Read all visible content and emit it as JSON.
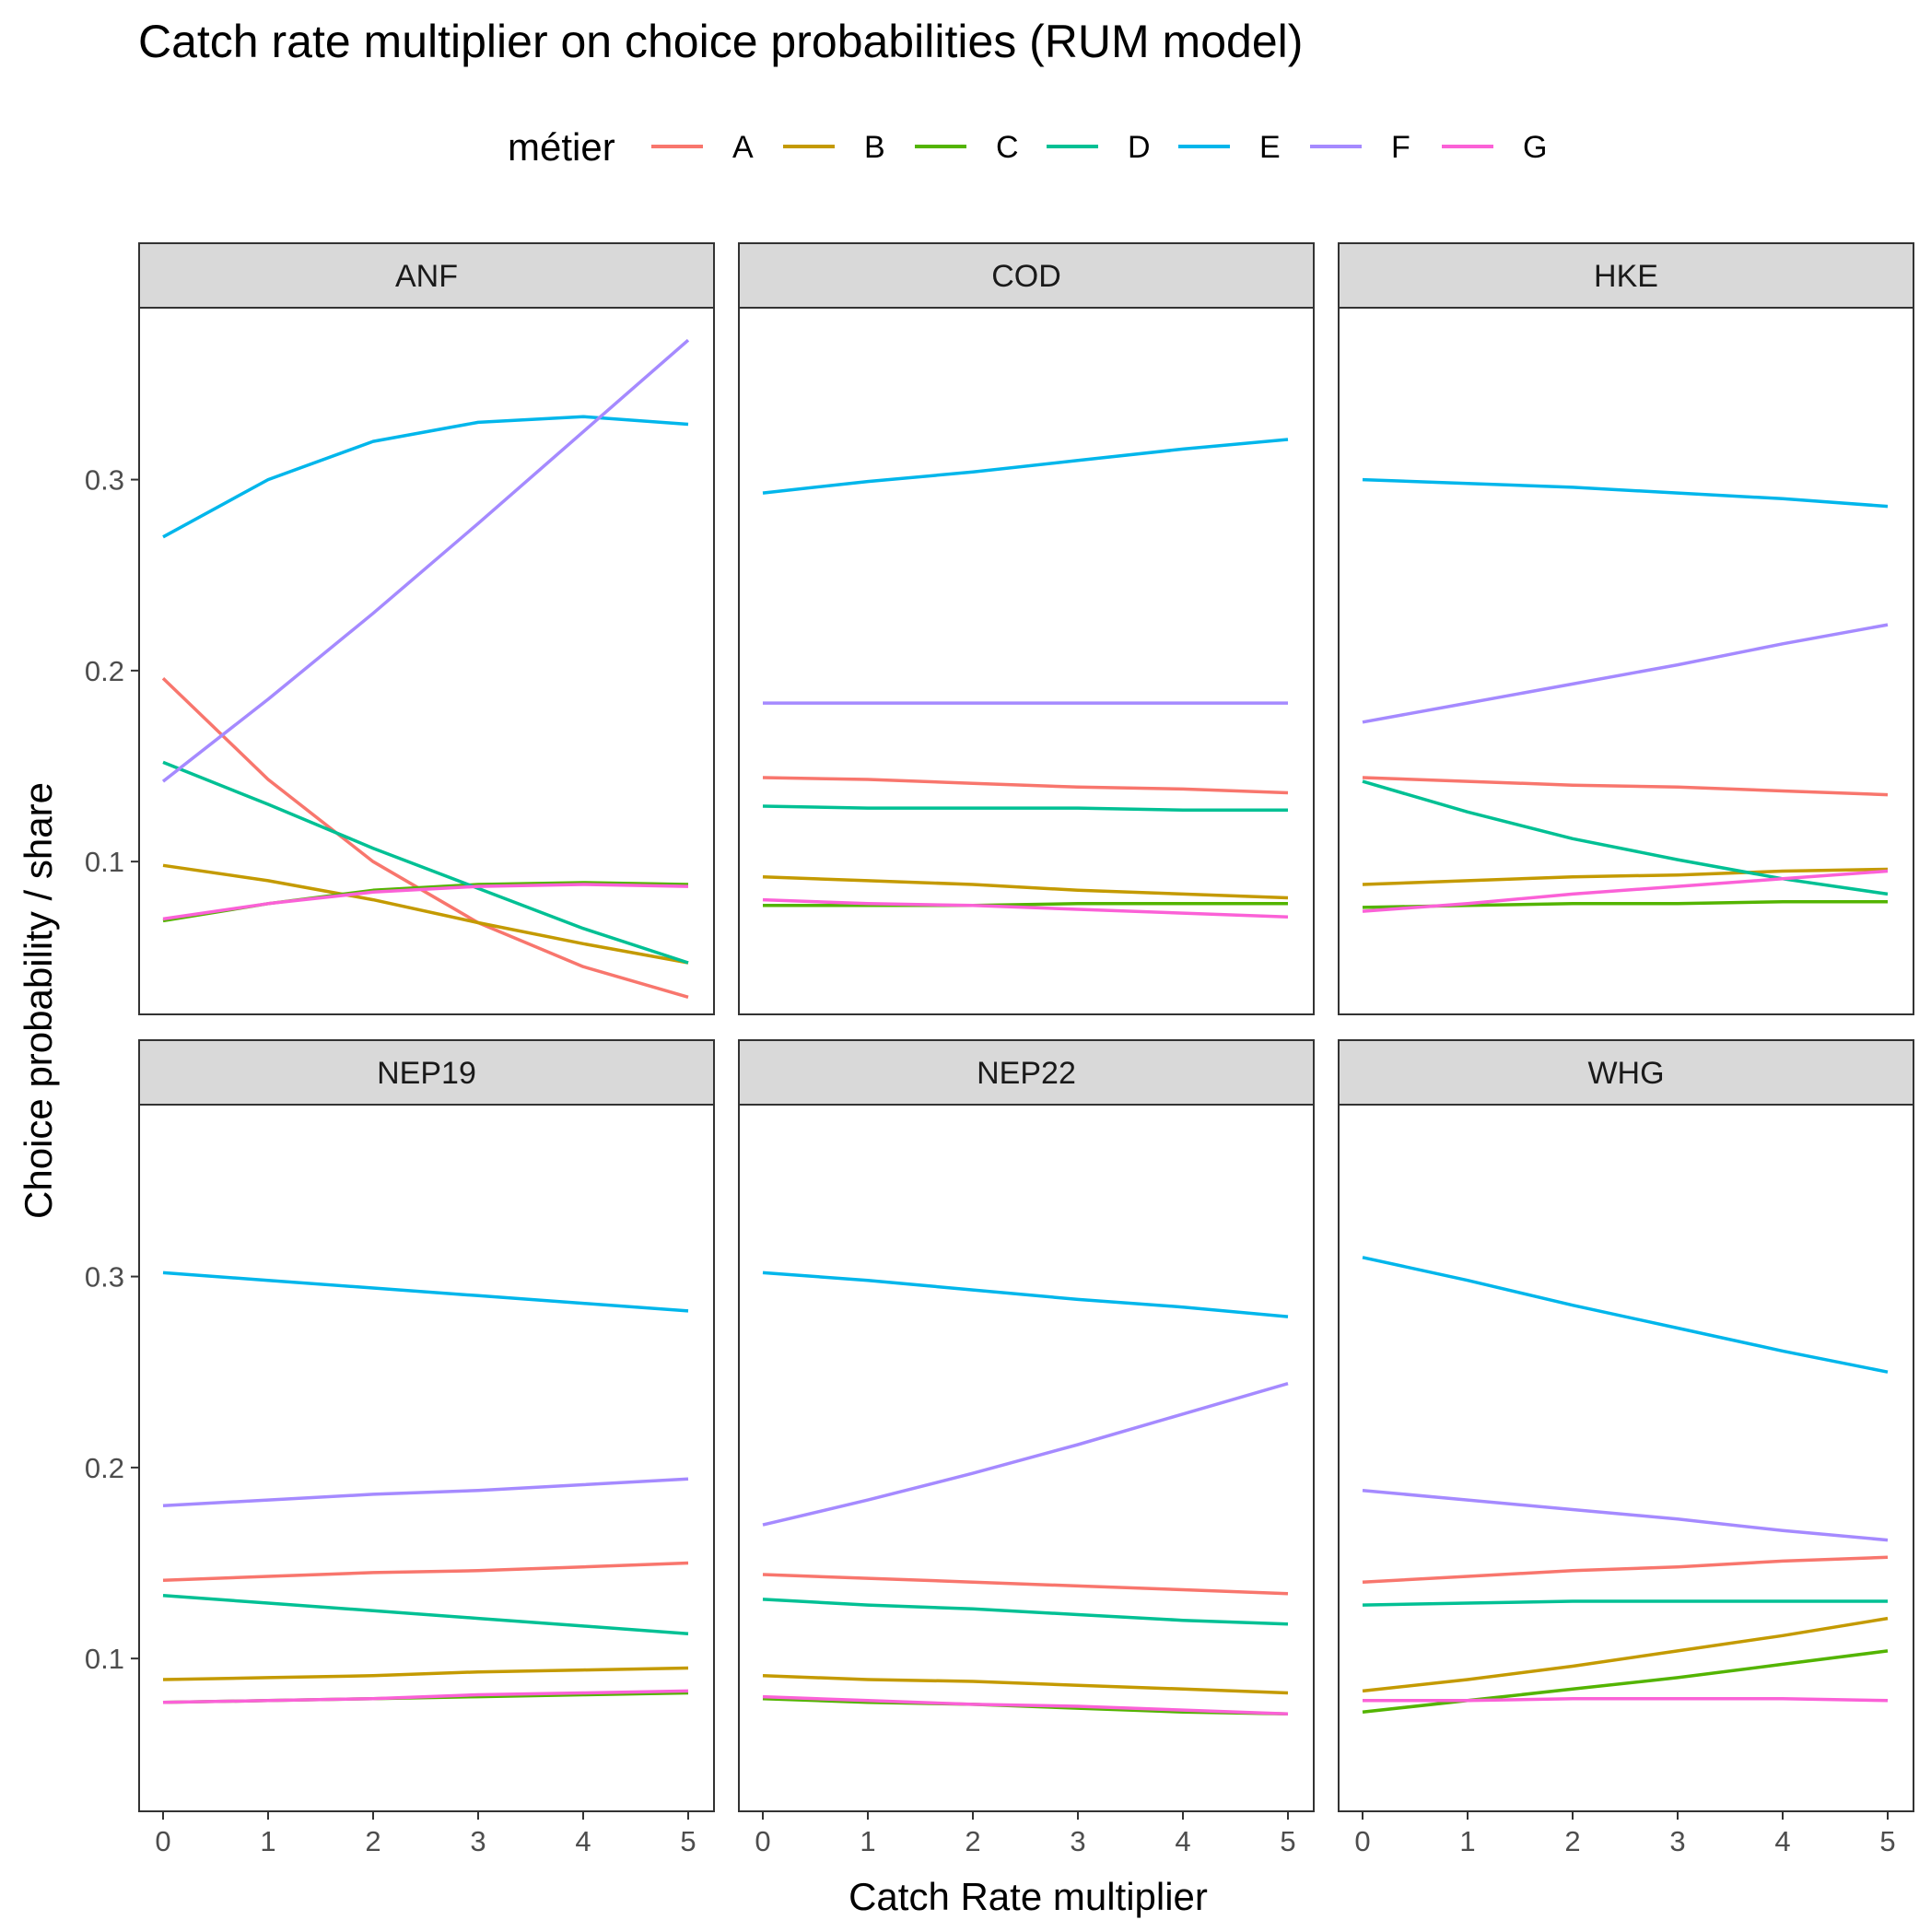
{
  "chart_data": {
    "type": "line",
    "title": "Catch rate multiplier on choice probabilities (RUM model)",
    "xlabel": "Catch Rate multiplier",
    "ylabel": "Choice probability / share",
    "legend_title": "métier",
    "legend_position": "top",
    "xlim": [
      0,
      5
    ],
    "ylim": [
      0.02,
      0.39
    ],
    "x_ticks": [
      0,
      1,
      2,
      3,
      4,
      5
    ],
    "y_ticks": [
      0.1,
      0.2,
      0.3
    ],
    "y_tick_labels": [
      "0.1",
      "0.2",
      "0.3"
    ],
    "x": [
      0,
      1,
      2,
      3,
      4,
      5
    ],
    "series_names": [
      "A",
      "B",
      "C",
      "D",
      "E",
      "F",
      "G"
    ],
    "colors": {
      "A": "#F8766D",
      "B": "#C49A00",
      "C": "#53B400",
      "D": "#00C094",
      "E": "#00B6EB",
      "F": "#A58AFF",
      "G": "#FB61D7"
    },
    "panels": [
      {
        "name": "ANF",
        "series": [
          {
            "name": "A",
            "values": [
              0.196,
              0.143,
              0.1,
              0.068,
              0.045,
              0.029
            ]
          },
          {
            "name": "B",
            "values": [
              0.098,
              0.09,
              0.08,
              0.068,
              0.057,
              0.047
            ]
          },
          {
            "name": "C",
            "values": [
              0.069,
              0.078,
              0.085,
              0.088,
              0.089,
              0.088
            ]
          },
          {
            "name": "D",
            "values": [
              0.152,
              0.13,
              0.107,
              0.086,
              0.065,
              0.047
            ]
          },
          {
            "name": "E",
            "values": [
              0.27,
              0.3,
              0.32,
              0.33,
              0.333,
              0.329
            ]
          },
          {
            "name": "F",
            "values": [
              0.142,
              0.185,
              0.23,
              0.277,
              0.325,
              0.373
            ]
          },
          {
            "name": "G",
            "values": [
              0.07,
              0.078,
              0.084,
              0.087,
              0.088,
              0.087
            ]
          }
        ]
      },
      {
        "name": "COD",
        "series": [
          {
            "name": "A",
            "values": [
              0.144,
              0.143,
              0.141,
              0.139,
              0.138,
              0.136
            ]
          },
          {
            "name": "B",
            "values": [
              0.092,
              0.09,
              0.088,
              0.085,
              0.083,
              0.081
            ]
          },
          {
            "name": "C",
            "values": [
              0.077,
              0.077,
              0.077,
              0.078,
              0.078,
              0.078
            ]
          },
          {
            "name": "D",
            "values": [
              0.129,
              0.128,
              0.128,
              0.128,
              0.127,
              0.127
            ]
          },
          {
            "name": "E",
            "values": [
              0.293,
              0.299,
              0.304,
              0.31,
              0.316,
              0.321
            ]
          },
          {
            "name": "F",
            "values": [
              0.183,
              0.183,
              0.183,
              0.183,
              0.183,
              0.183
            ]
          },
          {
            "name": "G",
            "values": [
              0.08,
              0.078,
              0.077,
              0.075,
              0.073,
              0.071
            ]
          }
        ]
      },
      {
        "name": "HKE",
        "series": [
          {
            "name": "A",
            "values": [
              0.144,
              0.142,
              0.14,
              0.139,
              0.137,
              0.135
            ]
          },
          {
            "name": "B",
            "values": [
              0.088,
              0.09,
              0.092,
              0.093,
              0.095,
              0.096
            ]
          },
          {
            "name": "C",
            "values": [
              0.076,
              0.077,
              0.078,
              0.078,
              0.079,
              0.079
            ]
          },
          {
            "name": "D",
            "values": [
              0.142,
              0.126,
              0.112,
              0.101,
              0.091,
              0.083
            ]
          },
          {
            "name": "E",
            "values": [
              0.3,
              0.298,
              0.296,
              0.293,
              0.29,
              0.286
            ]
          },
          {
            "name": "F",
            "values": [
              0.173,
              0.183,
              0.193,
              0.203,
              0.214,
              0.224
            ]
          },
          {
            "name": "G",
            "values": [
              0.074,
              0.078,
              0.083,
              0.087,
              0.091,
              0.095
            ]
          }
        ]
      },
      {
        "name": "NEP19",
        "series": [
          {
            "name": "A",
            "values": [
              0.141,
              0.143,
              0.145,
              0.146,
              0.148,
              0.15
            ]
          },
          {
            "name": "B",
            "values": [
              0.089,
              0.09,
              0.091,
              0.093,
              0.094,
              0.095
            ]
          },
          {
            "name": "C",
            "values": [
              0.077,
              0.078,
              0.079,
              0.08,
              0.081,
              0.082
            ]
          },
          {
            "name": "D",
            "values": [
              0.133,
              0.129,
              0.125,
              0.121,
              0.117,
              0.113
            ]
          },
          {
            "name": "E",
            "values": [
              0.302,
              0.298,
              0.294,
              0.29,
              0.286,
              0.282
            ]
          },
          {
            "name": "F",
            "values": [
              0.18,
              0.183,
              0.186,
              0.188,
              0.191,
              0.194
            ]
          },
          {
            "name": "G",
            "values": [
              0.077,
              0.078,
              0.079,
              0.081,
              0.082,
              0.083
            ]
          }
        ]
      },
      {
        "name": "NEP22",
        "series": [
          {
            "name": "A",
            "values": [
              0.144,
              0.142,
              0.14,
              0.138,
              0.136,
              0.134
            ]
          },
          {
            "name": "B",
            "values": [
              0.091,
              0.089,
              0.088,
              0.086,
              0.084,
              0.082
            ]
          },
          {
            "name": "C",
            "values": [
              0.079,
              0.077,
              0.076,
              0.074,
              0.072,
              0.071
            ]
          },
          {
            "name": "D",
            "values": [
              0.131,
              0.128,
              0.126,
              0.123,
              0.12,
              0.118
            ]
          },
          {
            "name": "E",
            "values": [
              0.302,
              0.298,
              0.293,
              0.288,
              0.284,
              0.279
            ]
          },
          {
            "name": "F",
            "values": [
              0.17,
              0.183,
              0.197,
              0.212,
              0.228,
              0.244
            ]
          },
          {
            "name": "G",
            "values": [
              0.08,
              0.078,
              0.076,
              0.075,
              0.073,
              0.071
            ]
          }
        ]
      },
      {
        "name": "WHG",
        "series": [
          {
            "name": "A",
            "values": [
              0.14,
              0.143,
              0.146,
              0.148,
              0.151,
              0.153
            ]
          },
          {
            "name": "B",
            "values": [
              0.083,
              0.089,
              0.096,
              0.104,
              0.112,
              0.121
            ]
          },
          {
            "name": "C",
            "values": [
              0.072,
              0.078,
              0.084,
              0.09,
              0.097,
              0.104
            ]
          },
          {
            "name": "D",
            "values": [
              0.128,
              0.129,
              0.13,
              0.13,
              0.13,
              0.13
            ]
          },
          {
            "name": "E",
            "values": [
              0.31,
              0.298,
              0.285,
              0.273,
              0.261,
              0.25
            ]
          },
          {
            "name": "F",
            "values": [
              0.188,
              0.183,
              0.178,
              0.173,
              0.167,
              0.162
            ]
          },
          {
            "name": "G",
            "values": [
              0.078,
              0.078,
              0.079,
              0.079,
              0.079,
              0.078
            ]
          }
        ]
      }
    ]
  }
}
